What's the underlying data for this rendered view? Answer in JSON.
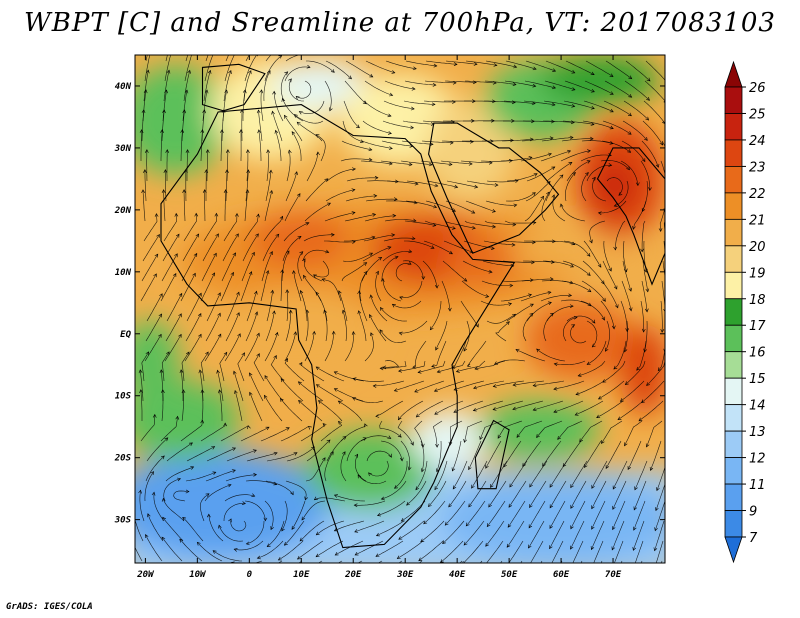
{
  "title": "WBPT [C] and Sreamline at 700hPa, VT: 2017083103",
  "credit": "GrADS: IGES/COLA",
  "map": {
    "lon_range": [
      -22,
      80
    ],
    "lat_range": [
      -37,
      45
    ],
    "lon_ticks": [
      {
        "value": -20,
        "label": "20W"
      },
      {
        "value": -10,
        "label": "10W"
      },
      {
        "value": 0,
        "label": "0"
      },
      {
        "value": 10,
        "label": "10E"
      },
      {
        "value": 20,
        "label": "20E"
      },
      {
        "value": 30,
        "label": "30E"
      },
      {
        "value": 40,
        "label": "40E"
      },
      {
        "value": 50,
        "label": "50E"
      },
      {
        "value": 60,
        "label": "60E"
      },
      {
        "value": 70,
        "label": "70E"
      }
    ],
    "lat_ticks": [
      {
        "value": 40,
        "label": "40N"
      },
      {
        "value": 30,
        "label": "30N"
      },
      {
        "value": 20,
        "label": "20N"
      },
      {
        "value": 10,
        "label": "10N"
      },
      {
        "value": 0,
        "label": "EQ"
      },
      {
        "value": -10,
        "label": "10S"
      },
      {
        "value": -20,
        "label": "20S"
      },
      {
        "value": -30,
        "label": "30S"
      }
    ]
  },
  "colorbar": {
    "labels": [
      "7",
      "9",
      "11",
      "12",
      "13",
      "14",
      "15",
      "16",
      "17",
      "18",
      "19",
      "20",
      "21",
      "22",
      "23",
      "24",
      "25",
      "26"
    ],
    "colors": [
      "#1e6ed8",
      "#3c8ae6",
      "#5aa0ef",
      "#79b6f4",
      "#9ccbf6",
      "#c2e3f8",
      "#e4f6f4",
      "#a6dd96",
      "#5cc05a",
      "#2ea12e",
      "#fdf1a6",
      "#f5d17c",
      "#f1ae4a",
      "#ed8f26",
      "#e86a1a",
      "#dd4611",
      "#c8230f",
      "#a90e0e",
      "#8a0505"
    ]
  }
}
